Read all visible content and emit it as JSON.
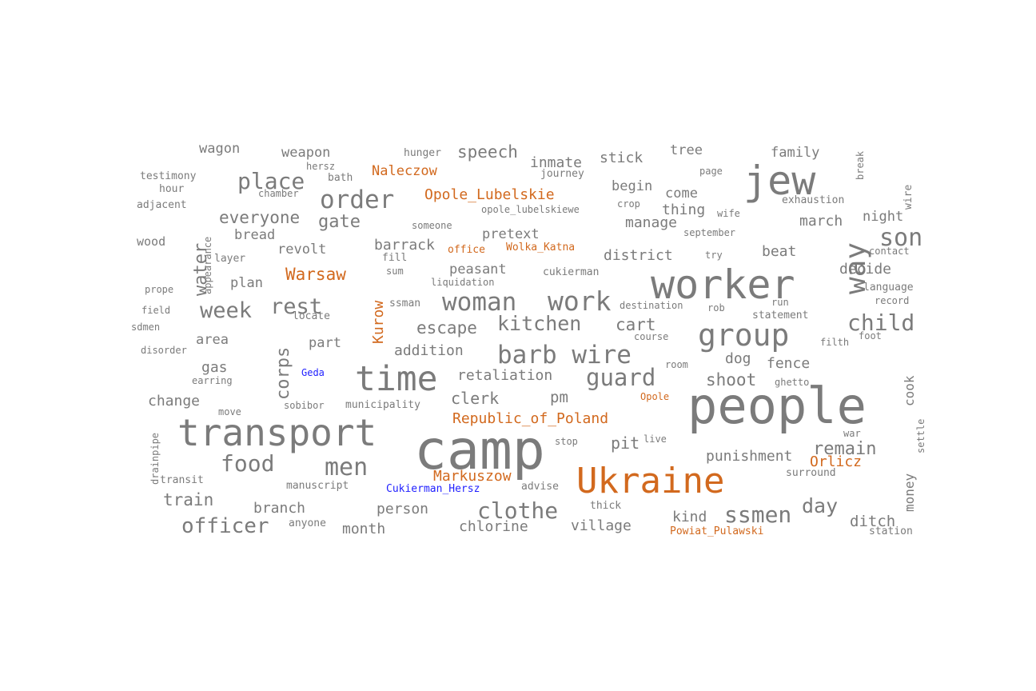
{
  "colors": {
    "common": "#7b7b7b",
    "place": "#d2691e",
    "person": "#1f1fff"
  },
  "words": [
    "wagon",
    "weapon",
    "hunger",
    "speech",
    "inmate",
    "stick",
    "tree",
    "family",
    "break",
    "testimony",
    "hersz",
    "bath",
    "Naleczow",
    "journey",
    "page",
    "jew",
    "wire",
    "hour",
    "chamber",
    "place",
    "order",
    "Opole_Lubelskie",
    "begin",
    "come",
    "exhaustion",
    "adjacent",
    "opole_lubelskiewe",
    "crop",
    "thing",
    "wife",
    "night",
    "everyone",
    "gate",
    "someone",
    "manage",
    "march",
    "son",
    "wood",
    "appearance",
    "water",
    "bread",
    "pretext",
    "september",
    "barrack",
    "revolt",
    "office",
    "Wolka_Katna",
    "district",
    "try",
    "beat",
    "contact",
    "layer",
    "fill",
    "way",
    "decide",
    "prope",
    "plan",
    "sum",
    "Warsaw",
    "peasant",
    "cukierman",
    "worker",
    "liquidation",
    "language",
    "rest",
    "Kurow",
    "woman",
    "work",
    "record",
    "field",
    "week",
    "ssman",
    "destination",
    "rob",
    "run",
    "sdmen",
    "locate",
    "escape",
    "kitchen",
    "cart",
    "statement",
    "child",
    "group",
    "area",
    "corps",
    "part",
    "addition",
    "course",
    "filth",
    "foot",
    "disorder",
    "barb wire",
    "gas",
    "Geda",
    "room",
    "dog",
    "fence",
    "time",
    "earring",
    "retaliation",
    "guard",
    "shoot",
    "ghetto",
    "cook",
    "change",
    "Opole",
    "clerk",
    "pm",
    "people",
    "sobibor",
    "municipality",
    "move",
    "Republic_of_Poland",
    "drainpipe",
    "transport",
    "stop",
    "war",
    "settle",
    "live",
    "pit",
    "camp",
    "remain",
    "food",
    "punishment",
    "Orlicz",
    "men",
    "Markuszow",
    "transit",
    "surround",
    "Ukraine",
    "manuscript",
    "Cukierman_Hersz",
    "advise",
    "money",
    "train",
    "day",
    "thick",
    "branch",
    "person",
    "clothe",
    "ssmen",
    "kind",
    "officer",
    "ditch",
    "anyone",
    "village",
    "month",
    "chlorine",
    "Powiat_Pulawski",
    "station"
  ]
}
